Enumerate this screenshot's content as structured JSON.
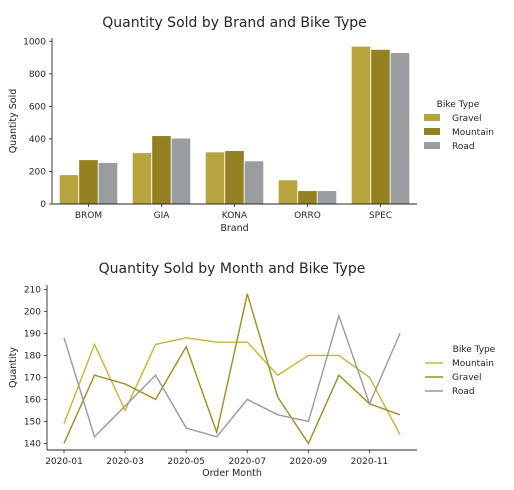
{
  "chart_data": [
    {
      "type": "bar",
      "title": "Quantity Sold by Brand and Bike Type",
      "xlabel": "Brand",
      "ylabel": "Quantity Sold",
      "ylim": [
        0,
        1020
      ],
      "yticks": [
        0,
        200,
        400,
        600,
        800,
        1000
      ],
      "categories": [
        "BROM",
        "GIA",
        "KONA",
        "ORRO",
        "SPEC"
      ],
      "legend_title": "Bike Type",
      "legend_position": "right",
      "series": [
        {
          "name": "Gravel",
          "color": "#b8a43e",
          "values": [
            180,
            315,
            320,
            148,
            970
          ]
        },
        {
          "name": "Mountain",
          "color": "#938122",
          "values": [
            272,
            420,
            328,
            82,
            950
          ]
        },
        {
          "name": "Road",
          "color": "#999d9f",
          "values": [
            255,
            405,
            265,
            82,
            930
          ]
        }
      ]
    },
    {
      "type": "line",
      "title": "Quantity Sold by Month and Bike Type",
      "xlabel": "Order Month",
      "ylabel": "Quantity",
      "ylim": [
        137,
        212
      ],
      "yticks": [
        140,
        150,
        160,
        170,
        180,
        190,
        200,
        210
      ],
      "x": [
        "2020-01",
        "2020-02",
        "2020-03",
        "2020-04",
        "2020-05",
        "2020-06",
        "2020-07",
        "2020-08",
        "2020-09",
        "2020-10",
        "2020-11",
        "2020-12"
      ],
      "xticks": [
        "2020-01",
        "2020-03",
        "2020-05",
        "2020-07",
        "2020-09",
        "2020-11"
      ],
      "legend_title": "Bike Type",
      "legend_position": "right",
      "series": [
        {
          "name": "Mountain",
          "color": "#c9b43a",
          "values": [
            149,
            185,
            155,
            185,
            188,
            186,
            186,
            171,
            180,
            180,
            170,
            144
          ]
        },
        {
          "name": "Gravel",
          "color": "#9c8d22",
          "values": [
            140,
            171,
            167,
            160,
            184,
            145,
            208,
            161,
            140,
            171,
            158,
            153
          ]
        },
        {
          "name": "Road",
          "color": "#9a9a9a",
          "values": [
            188,
            143,
            157,
            171,
            147,
            143,
            160,
            153,
            150,
            198,
            158,
            190
          ]
        }
      ]
    }
  ]
}
